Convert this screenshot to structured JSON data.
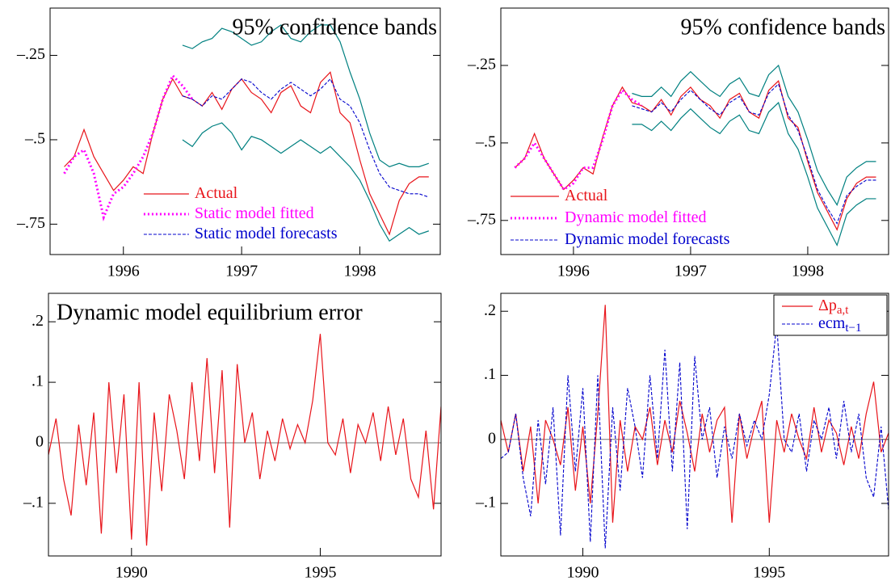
{
  "chart_data": [
    {
      "type": "line",
      "title": "95% confidence bands",
      "title_position": "top right",
      "legend": "lower center",
      "x": [
        1995.5,
        1995.583,
        1995.667,
        1995.75,
        1995.833,
        1995.917,
        1996,
        1996.083,
        1996.167,
        1996.25,
        1996.333,
        1996.417,
        1996.5,
        1996.583,
        1996.667,
        1996.75,
        1996.833,
        1996.917,
        1997,
        1997.083,
        1997.167,
        1997.25,
        1997.333,
        1997.417,
        1997.5,
        1997.583,
        1997.667,
        1997.75,
        1997.833,
        1997.917,
        1998,
        1998.083,
        1998.167,
        1998.25,
        1998.333,
        1998.417,
        1998.5,
        1998.583
      ],
      "xlim": [
        1995.38,
        1998.68
      ],
      "xticks": [
        1996,
        1997,
        1998
      ],
      "ylim": [
        -0.84,
        -0.11
      ],
      "yticks": [
        {
          "value": -0.75,
          "label": "–.75"
        },
        {
          "value": -0.5,
          "label": "–.5"
        },
        {
          "value": -0.25,
          "label": "–.25"
        }
      ],
      "series": [
        {
          "name": "Actual",
          "color": "#e8141a",
          "style": "solid",
          "values": [
            -0.58,
            -0.55,
            -0.47,
            -0.55,
            -0.6,
            -0.65,
            -0.62,
            -0.58,
            -0.6,
            -0.48,
            -0.38,
            -0.32,
            -0.37,
            -0.38,
            -0.4,
            -0.36,
            -0.41,
            -0.35,
            -0.32,
            -0.36,
            -0.38,
            -0.42,
            -0.36,
            -0.34,
            -0.4,
            -0.42,
            -0.33,
            -0.3,
            -0.42,
            -0.45,
            -0.56,
            -0.66,
            -0.72,
            -0.78,
            -0.68,
            -0.63,
            -0.61,
            -0.61
          ]
        },
        {
          "name": "Static model fitted",
          "color": "#ff00ff",
          "style": "dotted",
          "values": [
            -0.6,
            -0.55,
            -0.53,
            -0.6,
            -0.73,
            -0.66,
            -0.64,
            -0.6,
            -0.55,
            -0.48,
            -0.38,
            -0.31,
            -0.34,
            -0.38,
            null,
            null,
            null,
            null,
            null,
            null,
            null,
            null,
            null,
            null,
            null,
            null,
            null,
            null,
            null,
            null,
            null,
            null,
            null,
            null,
            null,
            null,
            null,
            null
          ]
        },
        {
          "name": "Static model forecasts",
          "color": "#0000cc",
          "style": "dashed",
          "values": [
            null,
            null,
            null,
            null,
            null,
            null,
            null,
            null,
            null,
            null,
            null,
            null,
            -0.37,
            -0.38,
            -0.4,
            -0.37,
            -0.38,
            -0.35,
            -0.32,
            -0.33,
            -0.36,
            -0.38,
            -0.35,
            -0.33,
            -0.35,
            -0.37,
            -0.35,
            -0.32,
            -0.38,
            -0.4,
            -0.45,
            -0.53,
            -0.6,
            -0.64,
            -0.65,
            -0.66,
            -0.66,
            -0.67
          ]
        },
        {
          "color": "#008080",
          "style": "solid",
          "values": [
            null,
            null,
            null,
            null,
            null,
            null,
            null,
            null,
            null,
            null,
            null,
            null,
            -0.22,
            -0.23,
            -0.21,
            -0.2,
            -0.17,
            -0.18,
            -0.2,
            -0.22,
            -0.21,
            -0.18,
            -0.16,
            -0.2,
            -0.21,
            -0.18,
            -0.16,
            -0.16,
            -0.21,
            -0.3,
            -0.38,
            -0.48,
            -0.56,
            -0.58,
            -0.57,
            -0.58,
            -0.58,
            -0.57
          ]
        },
        {
          "color": "#008080",
          "style": "solid",
          "values": [
            null,
            null,
            null,
            null,
            null,
            null,
            null,
            null,
            null,
            null,
            null,
            null,
            -0.5,
            -0.52,
            -0.48,
            -0.46,
            -0.45,
            -0.48,
            -0.53,
            -0.49,
            -0.5,
            -0.52,
            -0.54,
            -0.52,
            -0.5,
            -0.52,
            -0.54,
            -0.52,
            -0.55,
            -0.58,
            -0.62,
            -0.68,
            -0.75,
            -0.8,
            -0.78,
            -0.76,
            -0.78,
            -0.77
          ]
        }
      ]
    },
    {
      "type": "line",
      "title": "95% confidence bands",
      "title_position": "top right",
      "legend": "lower left",
      "x": [
        1995.5,
        1995.583,
        1995.667,
        1995.75,
        1995.833,
        1995.917,
        1996,
        1996.083,
        1996.167,
        1996.25,
        1996.333,
        1996.417,
        1996.5,
        1996.583,
        1996.667,
        1996.75,
        1996.833,
        1996.917,
        1997,
        1997.083,
        1997.167,
        1997.25,
        1997.333,
        1997.417,
        1997.5,
        1997.583,
        1997.667,
        1997.75,
        1997.833,
        1997.917,
        1998,
        1998.083,
        1998.167,
        1998.25,
        1998.333,
        1998.417,
        1998.5,
        1998.583
      ],
      "xlim": [
        1995.38,
        1998.69
      ],
      "xticks": [
        1996,
        1997,
        1998
      ],
      "ylim": [
        -0.86,
        -0.065
      ],
      "yticks": [
        {
          "value": -0.75,
          "label": "–.75"
        },
        {
          "value": -0.5,
          "label": "–.5"
        },
        {
          "value": -0.25,
          "label": "–.25"
        }
      ],
      "series": [
        {
          "name": "Actual",
          "color": "#e8141a",
          "style": "solid",
          "values": [
            -0.58,
            -0.55,
            -0.47,
            -0.55,
            -0.6,
            -0.65,
            -0.62,
            -0.58,
            -0.6,
            -0.48,
            -0.38,
            -0.32,
            -0.37,
            -0.38,
            -0.4,
            -0.36,
            -0.41,
            -0.35,
            -0.32,
            -0.36,
            -0.38,
            -0.42,
            -0.36,
            -0.34,
            -0.4,
            -0.42,
            -0.33,
            -0.3,
            -0.42,
            -0.45,
            -0.56,
            -0.66,
            -0.72,
            -0.78,
            -0.68,
            -0.63,
            -0.61,
            -0.61
          ]
        },
        {
          "name": "Dynamic model fitted",
          "color": "#ff00ff",
          "style": "dotted",
          "values": [
            -0.58,
            -0.55,
            -0.5,
            -0.55,
            -0.6,
            -0.65,
            -0.63,
            -0.58,
            -0.58,
            -0.49,
            -0.38,
            -0.33,
            -0.36,
            -0.38,
            null,
            null,
            null,
            null,
            null,
            null,
            null,
            null,
            null,
            null,
            null,
            null,
            null,
            null,
            null,
            null,
            null,
            null,
            null,
            null,
            null,
            null,
            null,
            null
          ]
        },
        {
          "name": "Dynamic model forecasts",
          "color": "#0000cc",
          "style": "dashed",
          "values": [
            null,
            null,
            null,
            null,
            null,
            null,
            null,
            null,
            null,
            null,
            null,
            null,
            -0.38,
            -0.39,
            -0.4,
            -0.37,
            -0.4,
            -0.36,
            -0.33,
            -0.36,
            -0.39,
            -0.41,
            -0.37,
            -0.35,
            -0.4,
            -0.41,
            -0.34,
            -0.31,
            -0.41,
            -0.46,
            -0.55,
            -0.65,
            -0.71,
            -0.76,
            -0.67,
            -0.64,
            -0.62,
            -0.62
          ]
        },
        {
          "color": "#008080",
          "style": "solid",
          "values": [
            null,
            null,
            null,
            null,
            null,
            null,
            null,
            null,
            null,
            null,
            null,
            null,
            -0.34,
            -0.35,
            -0.35,
            -0.32,
            -0.35,
            -0.3,
            -0.27,
            -0.3,
            -0.33,
            -0.35,
            -0.31,
            -0.29,
            -0.34,
            -0.35,
            -0.28,
            -0.25,
            -0.35,
            -0.4,
            -0.49,
            -0.59,
            -0.65,
            -0.7,
            -0.61,
            -0.58,
            -0.56,
            -0.56
          ]
        },
        {
          "color": "#008080",
          "style": "solid",
          "values": [
            null,
            null,
            null,
            null,
            null,
            null,
            null,
            null,
            null,
            null,
            null,
            null,
            -0.44,
            -0.44,
            -0.46,
            -0.43,
            -0.46,
            -0.42,
            -0.39,
            -0.42,
            -0.45,
            -0.47,
            -0.43,
            -0.41,
            -0.46,
            -0.47,
            -0.4,
            -0.37,
            -0.47,
            -0.52,
            -0.61,
            -0.71,
            -0.77,
            -0.83,
            -0.73,
            -0.7,
            -0.68,
            -0.68
          ]
        }
      ]
    },
    {
      "type": "line",
      "title": "Dynamic model equilibrium error",
      "title_position": "top left",
      "zero_line": true,
      "x": [
        1987.8,
        1988,
        1988.2,
        1988.4,
        1988.6,
        1988.8,
        1989,
        1989.2,
        1989.4,
        1989.6,
        1989.8,
        1990,
        1990.2,
        1990.4,
        1990.6,
        1990.8,
        1991,
        1991.2,
        1991.4,
        1991.6,
        1991.8,
        1992,
        1992.2,
        1992.4,
        1992.6,
        1992.8,
        1993,
        1993.2,
        1993.4,
        1993.6,
        1993.8,
        1994,
        1994.2,
        1994.4,
        1994.6,
        1994.8,
        1995,
        1995.2,
        1995.4,
        1995.6,
        1995.8,
        1996,
        1996.2,
        1996.4,
        1996.6,
        1996.8,
        1997,
        1997.2,
        1997.4,
        1997.6,
        1997.8,
        1998,
        1998.2
      ],
      "xlim": [
        1987.8,
        1998.2
      ],
      "xticks": [
        1990,
        1995
      ],
      "ylim": [
        -0.187,
        0.247
      ],
      "yticks": [
        {
          "value": -0.1,
          "label": "–.1"
        },
        0,
        {
          "value": 0.1,
          "label": ".1"
        },
        {
          "value": 0.2,
          "label": ".2"
        }
      ],
      "series": [
        {
          "color": "#e8141a",
          "style": "solid",
          "values": [
            -0.02,
            0.04,
            -0.06,
            -0.12,
            0.03,
            -0.07,
            0.05,
            -0.15,
            0.1,
            -0.05,
            0.08,
            -0.16,
            0.1,
            -0.17,
            0.05,
            -0.08,
            0.08,
            0.02,
            -0.06,
            0.1,
            -0.03,
            0.14,
            -0.05,
            0.12,
            -0.14,
            0.13,
            0,
            0.05,
            -0.06,
            0.02,
            -0.03,
            0.04,
            -0.01,
            0.03,
            0,
            0.07,
            0.18,
            0,
            -0.02,
            0.04,
            -0.05,
            0.03,
            0,
            0.05,
            -0.03,
            0.06,
            -0.02,
            0.04,
            -0.06,
            -0.09,
            0.02,
            -0.11,
            0.06
          ]
        }
      ]
    },
    {
      "type": "line",
      "legend": "upper right",
      "zero_line": true,
      "x": [
        1987.8,
        1988,
        1988.2,
        1988.4,
        1988.6,
        1988.8,
        1989,
        1989.2,
        1989.4,
        1989.6,
        1989.8,
        1990,
        1990.2,
        1990.4,
        1990.6,
        1990.8,
        1991,
        1991.2,
        1991.4,
        1991.6,
        1991.8,
        1992,
        1992.2,
        1992.4,
        1992.6,
        1992.8,
        1993,
        1993.2,
        1993.4,
        1993.6,
        1993.8,
        1994,
        1994.2,
        1994.4,
        1994.6,
        1994.8,
        1995,
        1995.2,
        1995.4,
        1995.6,
        1995.8,
        1996,
        1996.2,
        1996.4,
        1996.6,
        1996.8,
        1997,
        1997.2,
        1997.4,
        1997.6,
        1997.8,
        1998,
        1998.2
      ],
      "xlim": [
        1987.8,
        1998.2
      ],
      "xticks": [
        1990,
        1995
      ],
      "ylim": [
        -0.182,
        0.228
      ],
      "yticks": [
        {
          "value": -0.1,
          "label": "–.1"
        },
        0,
        {
          "value": 0.1,
          "label": ".1"
        },
        {
          "value": 0.2,
          "label": ".2"
        }
      ],
      "series": [
        {
          "name": "Δp",
          "subscript": "a,t",
          "color": "#e8141a",
          "style": "solid",
          "values": [
            0.03,
            -0.02,
            0.04,
            -0.05,
            0.02,
            -0.1,
            0.03,
            0,
            -0.04,
            0.05,
            -0.08,
            0.02,
            -0.1,
            0.04,
            0.21,
            -0.13,
            0.03,
            -0.05,
            0.02,
            0,
            0.05,
            -0.04,
            0.03,
            -0.02,
            0.06,
            0.01,
            -0.05,
            0.04,
            -0.02,
            0.03,
            0.05,
            -0.13,
            0.04,
            -0.03,
            0.02,
            0.06,
            -0.13,
            0.03,
            -0.02,
            0.04,
            0,
            -0.03,
            0.05,
            -0.02,
            0.03,
            0.01,
            -0.04,
            0.02,
            -0.03,
            0.04,
            0.09,
            -0.02,
            0.01
          ]
        },
        {
          "name": "ecm",
          "subscript": "t−1",
          "color": "#0000cc",
          "style": "dashed",
          "values": [
            -0.03,
            -0.02,
            0.04,
            -0.06,
            -0.12,
            0.03,
            -0.07,
            0.05,
            -0.15,
            0.1,
            -0.05,
            0.08,
            -0.16,
            0.1,
            -0.17,
            0.05,
            -0.08,
            0.08,
            0.02,
            -0.06,
            0.1,
            -0.03,
            0.14,
            -0.05,
            0.12,
            -0.14,
            0.13,
            0,
            0.05,
            -0.06,
            0.02,
            -0.03,
            0.04,
            -0.01,
            0.03,
            0,
            0.07,
            0.18,
            0,
            -0.02,
            0.04,
            -0.05,
            0.03,
            0,
            0.05,
            -0.03,
            0.06,
            -0.02,
            0.04,
            -0.06,
            -0.09,
            0.02,
            -0.11
          ]
        }
      ]
    }
  ]
}
